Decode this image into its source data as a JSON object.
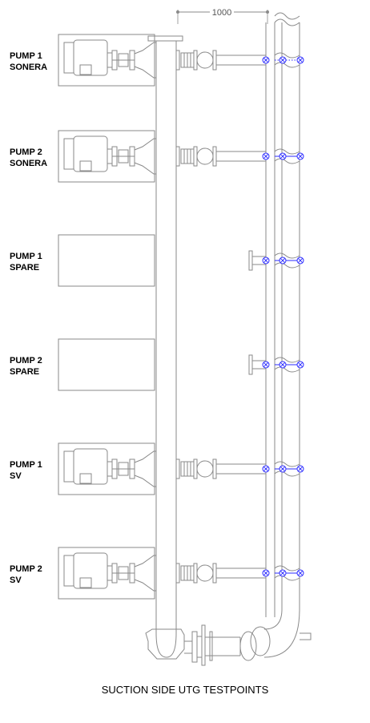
{
  "title": "SUCTION SIDE UTG TESTPOINTS",
  "dimension": "1000",
  "pumps": [
    {
      "line1": "PUMP 1",
      "line2": "SONERA",
      "type": "motor-pump"
    },
    {
      "line1": "PUMP 2",
      "line2": "SONERA",
      "type": "motor-pump"
    },
    {
      "line1": "PUMP 1",
      "line2": "SPARE",
      "type": "spare"
    },
    {
      "line1": "PUMP 2",
      "line2": "SPARE",
      "type": "spare"
    },
    {
      "line1": "PUMP 1",
      "line2": "SV",
      "type": "motor-pump"
    },
    {
      "line1": "PUMP 2",
      "line2": "SV",
      "type": "motor-pump"
    }
  ],
  "colors": {
    "line": "#8a8a8a",
    "testpoint": "#2b2bff",
    "text": "#000000"
  }
}
